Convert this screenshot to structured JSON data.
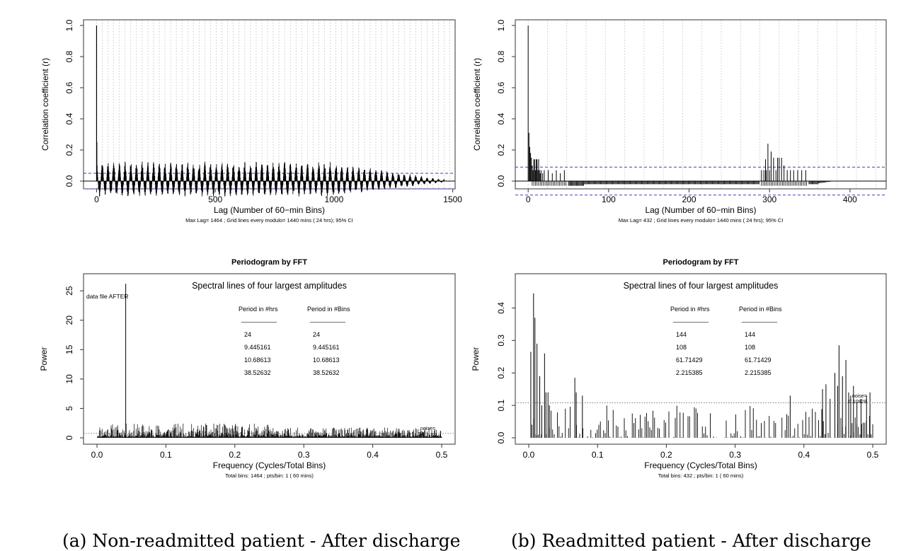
{
  "chart_data": [
    {
      "type": "bar",
      "panel": "a-acf",
      "title": "",
      "xlabel": "Lag (Number of 60−min Bins)",
      "ylabel": "Correlation coefficient (r)",
      "note": "Max Lag=  1464 ;    Grid lines every modulo= 1440 mins ( 24 hrs);  95% CI",
      "xlim": [
        0,
        1500
      ],
      "ylim": [
        -0.1,
        1.0
      ],
      "xticks": [
        "0",
        "500",
        "1000",
        "1500"
      ],
      "yticks": [
        "0.0",
        "0.2",
        "0.4",
        "0.6",
        "0.8",
        "1.0"
      ],
      "grid": "vertical dotted every 24 lags",
      "ci": [
        0.05,
        -0.05
      ],
      "series": [
        {
          "lag": [
            0,
            1,
            2
          ],
          "values": [
            1.0,
            0.25,
            0.1
          ]
        }
      ],
      "pattern": "oscillating daily correlation, peaks about 0.1 and troughs about -0.08, decaying to near 0 by lag 1450"
    },
    {
      "type": "bar",
      "panel": "b-acf",
      "title": "",
      "xlabel": "Lag (Number of 60−min Bins)",
      "ylabel": "Correlation coefficient (r)",
      "note": "Max Lag=  432 ;    Grid lines every modulo= 1440 mins ( 24 hrs);  95% CI",
      "xlim": [
        0,
        450
      ],
      "ylim": [
        -0.1,
        1.0
      ],
      "xticks": [
        "0",
        "100",
        "200",
        "300",
        "400"
      ],
      "yticks": [
        "0.0",
        "0.2",
        "0.4",
        "0.6",
        "0.8",
        "1.0"
      ],
      "grid": "vertical dotted every 24 lags",
      "ci": [
        0.09,
        -0.09
      ],
      "series": [
        {
          "lag": [
            0,
            1,
            2,
            3,
            4,
            5,
            6,
            7,
            8,
            9,
            10,
            11,
            12,
            13,
            14,
            15,
            16,
            18,
            20,
            25,
            30,
            35,
            40,
            45,
            290,
            293,
            295,
            296,
            298,
            300,
            302,
            305,
            308,
            310,
            312,
            315,
            318,
            322,
            326,
            330,
            335,
            340,
            345
          ],
          "values": [
            1.0,
            0.31,
            0.22,
            0.18,
            0.15,
            0.1,
            0.07,
            0.14,
            0.14,
            0.07,
            0.14,
            0.14,
            0.07,
            0.14,
            0.07,
            0.05,
            0.07,
            0.05,
            0.07,
            0.07,
            0.05,
            0.07,
            0.05,
            0.07,
            0.07,
            0.07,
            0.14,
            0.07,
            0.24,
            0.07,
            0.19,
            0.15,
            0.07,
            0.15,
            0.15,
            0.15,
            0.1,
            0.07,
            0.07,
            0.07,
            0.07,
            0.07,
            0.07
          ]
        }
      ],
      "pattern": "near zero (slightly negative) between lag 60 and 280 and after 375"
    },
    {
      "type": "bar",
      "panel": "a-periodogram",
      "title": "Periodogram by FFT",
      "xlabel": "Frequency (Cycles/Total Bins)",
      "ylabel": "Power",
      "note": "Total bins:  1464 ;    pts/bin:  1 ( 60 mins)",
      "inner_title": "Spectral lines of four largest amplitudes",
      "side_label": "data file AFTER",
      "noise_label": "noise=",
      "noise_value": "0.8",
      "xlim": [
        0,
        0.5
      ],
      "ylim": [
        0,
        25
      ],
      "xticks": [
        "0.0",
        "0.1",
        "0.2",
        "0.3",
        "0.4",
        "0.5"
      ],
      "yticks": [
        "0",
        "5",
        "10",
        "15",
        "20",
        "25"
      ],
      "peak": {
        "x": 0.0417,
        "y": 26.2
      },
      "col_headers": [
        "Period in #hrs",
        "Period in #Bins"
      ],
      "dash": "__________",
      "rows": [
        [
          "24",
          "24"
        ],
        [
          "9.445161",
          "9.445161"
        ],
        [
          "10.68613",
          "10.68613"
        ],
        [
          "38.52632",
          "38.52632"
        ]
      ],
      "pattern": "dense low power spectrum, mostly below 2.5"
    },
    {
      "type": "bar",
      "panel": "b-periodogram",
      "title": "Periodogram by FFT",
      "xlabel": "Frequency (Cycles/Total Bins)",
      "ylabel": "Power",
      "note": "Total bins:  432 ;    pts/bin:  1 ( 60 mins)",
      "inner_title": "Spectral lines of four largest amplitudes",
      "noise_label": "noise=",
      "noise_value": "0.10828",
      "xlim": [
        0,
        0.5
      ],
      "ylim": [
        0,
        0.45
      ],
      "xticks": [
        "0.0",
        "0.1",
        "0.2",
        "0.3",
        "0.4",
        "0.5"
      ],
      "yticks": [
        "0.0",
        "0.1",
        "0.2",
        "0.3",
        "0.4"
      ],
      "peaks": {
        "x": [
          0.003,
          0.007,
          0.009,
          0.012,
          0.016,
          0.019,
          0.023,
          0.025,
          0.028,
          0.03,
          0.067,
          0.069,
          0.078,
          0.38,
          0.427,
          0.432,
          0.438,
          0.445,
          0.449,
          0.451,
          0.456,
          0.461,
          0.465,
          0.468,
          0.472,
          0.477,
          0.483,
          0.491,
          0.496
        ],
        "y": [
          0.265,
          0.445,
          0.37,
          0.29,
          0.19,
          0.1,
          0.26,
          0.14,
          0.14,
          0.1,
          0.185,
          0.14,
          0.13,
          0.13,
          0.15,
          0.165,
          0.12,
          0.2,
          0.16,
          0.285,
          0.19,
          0.24,
          0.14,
          0.13,
          0.16,
          0.11,
          0.12,
          0.13,
          0.14
        ]
      },
      "col_headers": [
        "Period in #hrs",
        "Period in #Bins"
      ],
      "dash": "__________",
      "rows": [
        [
          "144",
          "144"
        ],
        [
          "108",
          "108"
        ],
        [
          "61.71429",
          "61.71429"
        ],
        [
          "2.215385",
          "2.215385"
        ]
      ],
      "pattern": "sparse lines, mostly 0 to 0.1"
    }
  ],
  "captions": {
    "a": "(a) Non-readmitted patient - After discharge",
    "b": "(b) Readmitted patient - After discharge"
  }
}
